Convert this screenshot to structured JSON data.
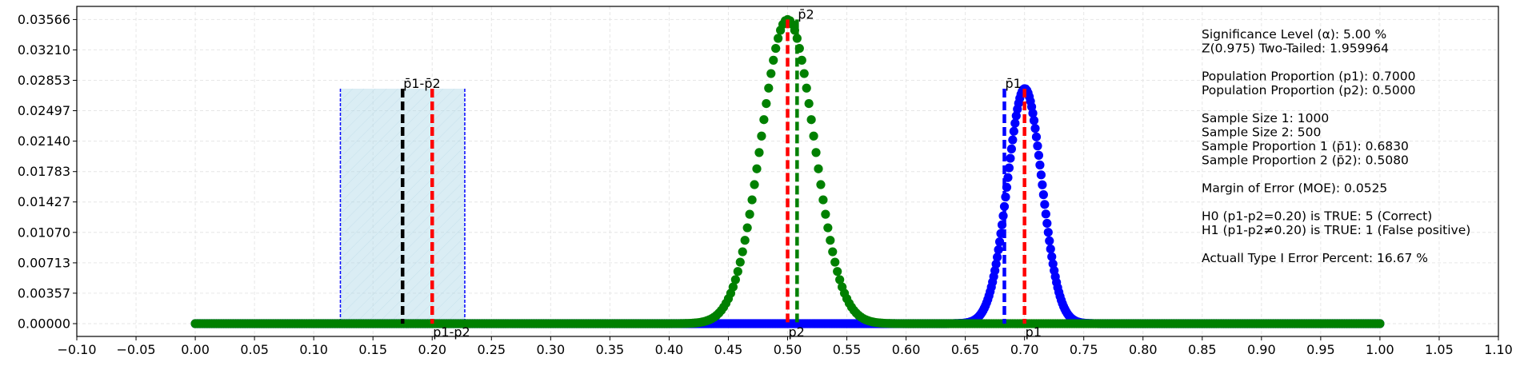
{
  "chart_data": {
    "type": "scatter",
    "title": "",
    "xlabel": "",
    "ylabel": "",
    "xlim": [
      -0.1,
      1.1
    ],
    "ylim": [
      -0.0015,
      0.0372
    ],
    "grid": true,
    "x_ticks": [
      -0.1,
      -0.05,
      0.0,
      0.05,
      0.1,
      0.15,
      0.2,
      0.25,
      0.3,
      0.35,
      0.4,
      0.45,
      0.5,
      0.55,
      0.6,
      0.65,
      0.7,
      0.75,
      0.8,
      0.85,
      0.9,
      0.95,
      1.0,
      1.05,
      1.1
    ],
    "x_tick_labels": [
      "−0.10",
      "−0.05",
      "0.00",
      "0.05",
      "0.10",
      "0.15",
      "0.20",
      "0.25",
      "0.30",
      "0.35",
      "0.40",
      "0.45",
      "0.50",
      "0.55",
      "0.60",
      "0.65",
      "0.70",
      "0.75",
      "0.80",
      "0.85",
      "0.90",
      "0.95",
      "1.00",
      "1.05",
      "1.10"
    ],
    "y_ticks": [
      0.0,
      0.00357,
      0.00713,
      0.0107,
      0.01427,
      0.01783,
      0.0214,
      0.02497,
      0.02853,
      0.0321,
      0.03566
    ],
    "y_tick_labels": [
      "0.00000",
      "0.00357",
      "0.00713",
      "0.01070",
      "0.01427",
      "0.01783",
      "0.02140",
      "0.02497",
      "0.02853",
      "0.03210",
      "0.03566"
    ],
    "series": [
      {
        "color": "#0000ff",
        "distribution": {
          "n": 1000,
          "p": 0.7,
          "x_step": 0.001,
          "x_range": [
            0,
            1
          ]
        },
        "peak_y": 0.02755
      },
      {
        "color": "#008000",
        "distribution": {
          "n": 500,
          "p": 0.5,
          "x_step": 0.002,
          "x_range": [
            0,
            1
          ]
        },
        "peak_y": 0.03566
      }
    ],
    "confidence_interval": {
      "lower": 0.1225,
      "upper": 0.2275,
      "top_y": 0.02755,
      "fill": "#add8e6",
      "edge": "#0000ff"
    },
    "vertical_lines": [
      {
        "x": 0.175,
        "y_top": 0.02755,
        "color": "#000000",
        "label": "p̄1-p̄2",
        "label_pos": "top"
      },
      {
        "x": 0.2,
        "y_top": 0.02755,
        "color": "#ff0000",
        "label": "p1-p2",
        "label_pos": "bottom"
      },
      {
        "x": 0.5,
        "y_top": 0.03566,
        "color": "#ff0000",
        "label": "p2",
        "label_pos": "bottom"
      },
      {
        "x": 0.508,
        "y_top": 0.03566,
        "color": "#008000",
        "label": "p̄2",
        "label_pos": "top"
      },
      {
        "x": 0.683,
        "y_top": 0.02755,
        "color": "#0000ff",
        "label": "p̄1",
        "label_pos": "top"
      },
      {
        "x": 0.7,
        "y_top": 0.02755,
        "color": "#ff0000",
        "label": "p1",
        "label_pos": "bottom"
      }
    ],
    "info_text": [
      "Significance Level (α): 5.00 %",
      "Z(0.975) Two-Tailed: 1.959964",
      "",
      "Population Proportion (p1): 0.7000",
      "Population Proportion (p2): 0.5000",
      "",
      "Sample Size 1: 1000",
      "Sample Size 2: 500",
      "Sample Proportion 1 (p̄1): 0.6830",
      "Sample Proportion 2 (p̄2): 0.5080",
      "",
      "Margin of Error (MOE): 0.0525",
      "",
      "H0 (p1-p2=0.20) is TRUE: 5 (Correct)",
      "H1 (p1-p2≠0.20) is TRUE: 1 (False positive)",
      "",
      "Actuall Type I Error Percent: 16.67 %"
    ]
  }
}
